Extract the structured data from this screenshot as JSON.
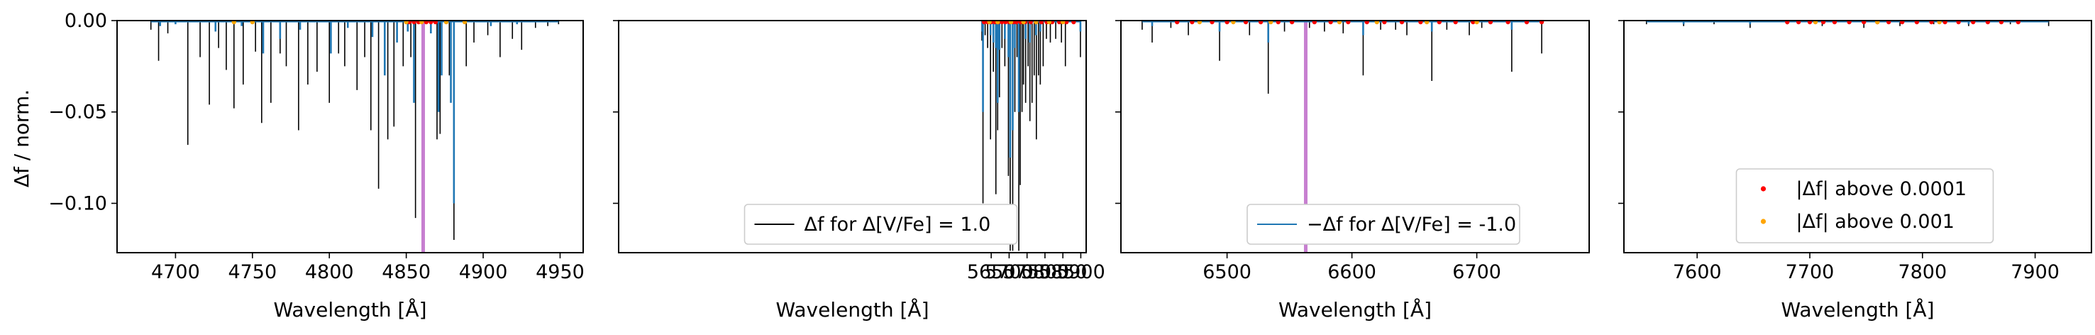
{
  "chart_data": [
    {
      "type": "line",
      "panel": 1,
      "xlim": [
        4662,
        4965
      ],
      "ylim": [
        -0.127,
        0.0
      ],
      "xticks": [
        4700,
        4750,
        4800,
        4850,
        4900,
        4950
      ],
      "yticks": [
        0.0,
        -0.05,
        -0.1
      ],
      "ytick_labels": [
        "0.00",
        "−0.05",
        "−0.10"
      ],
      "xlabel": "Wavelength [Å]",
      "ylabel": "Δf / norm.",
      "vline": 4861,
      "series": [
        {
          "color": "#000000",
          "lines": [
            [
              4684,
              -0.005
            ],
            [
              4689,
              -0.022
            ],
            [
              4695,
              -0.007
            ],
            [
              4708,
              -0.068
            ],
            [
              4716,
              -0.02
            ],
            [
              4722,
              -0.046
            ],
            [
              4728,
              -0.015
            ],
            [
              4733,
              -0.027
            ],
            [
              4738,
              -0.048
            ],
            [
              4744,
              -0.035
            ],
            [
              4752,
              -0.017
            ],
            [
              4756,
              -0.056
            ],
            [
              4762,
              -0.045
            ],
            [
              4768,
              -0.018
            ],
            [
              4772,
              -0.025
            ],
            [
              4780,
              -0.06
            ],
            [
              4786,
              -0.035
            ],
            [
              4792,
              -0.028
            ],
            [
              4800,
              -0.045
            ],
            [
              4806,
              -0.018
            ],
            [
              4810,
              -0.025
            ],
            [
              4818,
              -0.038
            ],
            [
              4823,
              -0.02
            ],
            [
              4827,
              -0.06
            ],
            [
              4832,
              -0.092
            ],
            [
              4838,
              -0.065
            ],
            [
              4842,
              -0.058
            ],
            [
              4848,
              -0.025
            ],
            [
              4853,
              -0.02
            ],
            [
              4856,
              -0.108
            ],
            [
              4870,
              -0.065
            ],
            [
              4872,
              -0.062
            ],
            [
              4878,
              -0.03
            ],
            [
              4881,
              -0.12
            ],
            [
              4889,
              -0.025
            ],
            [
              4894,
              -0.012
            ],
            [
              4903,
              -0.008
            ],
            [
              4911,
              -0.02
            ],
            [
              4919,
              -0.01
            ],
            [
              4925,
              -0.016
            ],
            [
              4934,
              -0.004
            ],
            [
              4942,
              -0.003
            ],
            [
              4949,
              -0.002
            ]
          ]
        },
        {
          "color": "#1f77b4",
          "lines": [
            [
              4690,
              -0.003
            ],
            [
              4700,
              -0.002
            ],
            [
              4726,
              -0.006
            ],
            [
              4743,
              -0.003
            ],
            [
              4757,
              -0.018
            ],
            [
              4768,
              -0.01
            ],
            [
              4781,
              -0.005
            ],
            [
              4801,
              -0.018
            ],
            [
              4812,
              -0.004
            ],
            [
              4828,
              -0.009
            ],
            [
              4836,
              -0.03
            ],
            [
              4844,
              -0.012
            ],
            [
              4851,
              -0.006
            ],
            [
              4855,
              -0.045
            ],
            [
              4866,
              -0.007
            ],
            [
              4871,
              -0.05
            ],
            [
              4873,
              -0.03
            ],
            [
              4879,
              -0.045
            ],
            [
              4881,
              -0.1
            ],
            [
              4905,
              -0.003
            ],
            [
              4922,
              -0.002
            ]
          ]
        }
      ],
      "dots": [
        {
          "color": "#ff0000",
          "x": [
            4852,
            4855,
            4858,
            4863,
            4866,
            4869
          ]
        },
        {
          "color": "#ffa500",
          "x": [
            4738,
            4750,
            4850,
            4860,
            4876,
            4888
          ]
        }
      ]
    },
    {
      "type": "line",
      "panel": 2,
      "xlim": [
        4610,
        5915
      ],
      "ylim": [
        -0.127,
        0.0
      ],
      "xticks": [
        5650,
        5700,
        5750,
        5800,
        5850,
        5900
      ],
      "yticks": [
        0.0,
        -0.05,
        -0.1
      ],
      "xlabel": "Wavelength [Å]",
      "series": [
        {
          "color": "#000000",
          "lines": [
            [
              5624,
              -0.011
            ],
            [
              5627,
              -0.1
            ],
            [
              5633,
              -0.008
            ],
            [
              5640,
              -0.015
            ],
            [
              5648,
              -0.065
            ],
            [
              5656,
              -0.028
            ],
            [
              5663,
              -0.095
            ],
            [
              5668,
              -0.06
            ],
            [
              5673,
              -0.042
            ],
            [
              5680,
              -0.015
            ],
            [
              5688,
              -0.025
            ],
            [
              5698,
              -0.085
            ],
            [
              5703,
              -0.126
            ],
            [
              5710,
              -0.126
            ],
            [
              5716,
              -0.05
            ],
            [
              5722,
              -0.02
            ],
            [
              5727,
              -0.126
            ],
            [
              5731,
              -0.09
            ],
            [
              5736,
              -0.05
            ],
            [
              5740,
              -0.035
            ],
            [
              5746,
              -0.045
            ],
            [
              5753,
              -0.025
            ],
            [
              5758,
              -0.055
            ],
            [
              5764,
              -0.045
            ],
            [
              5770,
              -0.03
            ],
            [
              5776,
              -0.065
            ],
            [
              5782,
              -0.03
            ],
            [
              5787,
              -0.035
            ],
            [
              5795,
              -0.025
            ],
            [
              5804,
              -0.01
            ],
            [
              5815,
              -0.012
            ],
            [
              5830,
              -0.01
            ],
            [
              5846,
              -0.012
            ],
            [
              5857,
              -0.025
            ],
            [
              5899,
              -0.02
            ]
          ]
        },
        {
          "color": "#1f77b4",
          "lines": [
            [
              5625,
              -0.006
            ],
            [
              5627,
              -0.05
            ],
            [
              5648,
              -0.008
            ],
            [
              5656,
              -0.012
            ],
            [
              5663,
              -0.015
            ],
            [
              5668,
              -0.045
            ],
            [
              5673,
              -0.016
            ],
            [
              5688,
              -0.01
            ],
            [
              5698,
              -0.02
            ],
            [
              5703,
              -0.075
            ],
            [
              5710,
              -0.06
            ],
            [
              5716,
              -0.015
            ],
            [
              5727,
              -0.05
            ],
            [
              5746,
              -0.01
            ],
            [
              5758,
              -0.012
            ],
            [
              5775,
              -0.008
            ],
            [
              5787,
              -0.006
            ],
            [
              5899,
              -0.006
            ]
          ]
        }
      ],
      "dots": [
        {
          "color": "#ff0000",
          "x": [
            5630,
            5640,
            5650,
            5660,
            5670,
            5680,
            5690,
            5700,
            5712,
            5720,
            5732,
            5745,
            5760,
            5775,
            5790,
            5805,
            5820,
            5840,
            5860,
            5880
          ]
        },
        {
          "color": "#ffa500",
          "x": [
            5645,
            5668,
            5705,
            5740,
            5775,
            5812,
            5850
          ]
        }
      ],
      "legend": {
        "label": "Δf for Δ[V/Fe] = 1.0",
        "color": "#000000"
      }
    },
    {
      "type": "line",
      "panel": 3,
      "xlim": [
        6415,
        6790
      ],
      "ylim": [
        -0.127,
        0.0
      ],
      "xticks": [
        6500,
        6600,
        6700
      ],
      "yticks": [
        0.0,
        -0.05,
        -0.1
      ],
      "xlabel": "Wavelength [Å]",
      "vline": 6563,
      "series": [
        {
          "color": "#000000",
          "lines": [
            [
              6432,
              -0.005
            ],
            [
              6440,
              -0.012
            ],
            [
              6455,
              -0.004
            ],
            [
              6469,
              -0.008
            ],
            [
              6494,
              -0.022
            ],
            [
              6518,
              -0.008
            ],
            [
              6533,
              -0.04
            ],
            [
              6546,
              -0.006
            ],
            [
              6566,
              -0.004
            ],
            [
              6578,
              -0.006
            ],
            [
              6593,
              -0.007
            ],
            [
              6609,
              -0.03
            ],
            [
              6623,
              -0.005
            ],
            [
              6635,
              -0.005
            ],
            [
              6644,
              -0.008
            ],
            [
              6664,
              -0.033
            ],
            [
              6676,
              -0.005
            ],
            [
              6694,
              -0.008
            ],
            [
              6704,
              -0.004
            ],
            [
              6728,
              -0.028
            ],
            [
              6752,
              -0.018
            ]
          ]
        },
        {
          "color": "#1f77b4",
          "lines": [
            [
              6440,
              -0.003
            ],
            [
              6494,
              -0.006
            ],
            [
              6533,
              -0.012
            ],
            [
              6609,
              -0.008
            ],
            [
              6664,
              -0.006
            ],
            [
              6728,
              -0.005
            ]
          ]
        }
      ],
      "dots": [
        {
          "color": "#ff0000",
          "x": [
            6460,
            6472,
            6488,
            6500,
            6515,
            6527,
            6541,
            6552,
            6570,
            6583,
            6597,
            6612,
            6626,
            6640,
            6655,
            6670,
            6683,
            6697,
            6711,
            6725,
            6740,
            6752
          ]
        },
        {
          "color": "#ffa500",
          "x": [
            6478,
            6505,
            6535,
            6590,
            6620,
            6660,
            6700
          ]
        }
      ],
      "legend": {
        "label": "−Δf for Δ[V/Fe] = -1.0",
        "color": "#1f77b4"
      }
    },
    {
      "type": "line",
      "panel": 4,
      "xlim": [
        7535,
        7950
      ],
      "ylim": [
        -0.127,
        0.0
      ],
      "xticks": [
        7600,
        7700,
        7800,
        7900
      ],
      "yticks": [
        0.0,
        -0.05,
        -0.1
      ],
      "xlabel": "Wavelength [Å]",
      "series": [
        {
          "color": "#000000",
          "lines": [
            [
              7555,
              -0.002
            ],
            [
              7588,
              -0.003
            ],
            [
              7615,
              -0.002
            ],
            [
              7647,
              -0.004
            ],
            [
              7680,
              -0.002
            ],
            [
              7711,
              -0.003
            ],
            [
              7748,
              -0.004
            ],
            [
              7780,
              -0.003
            ],
            [
              7810,
              -0.002
            ],
            [
              7841,
              -0.003
            ],
            [
              7878,
              -0.002
            ],
            [
              7912,
              -0.003
            ]
          ]
        },
        {
          "color": "#1f77b4",
          "lines": [
            [
              7588,
              -0.002
            ],
            [
              7647,
              -0.002
            ],
            [
              7748,
              -0.002
            ],
            [
              7841,
              -0.002
            ]
          ]
        }
      ],
      "dots": [
        {
          "color": "#ff0000",
          "x": [
            7680,
            7690,
            7700,
            7712,
            7722,
            7735,
            7748,
            7760,
            7770,
            7782,
            7795,
            7808,
            7820,
            7832,
            7845,
            7858,
            7870,
            7885
          ]
        },
        {
          "color": "#ffa500",
          "x": [
            7705,
            7760,
            7815
          ]
        }
      ],
      "legend_entries": [
        {
          "label": "|Δf| above 0.0001",
          "color": "#ff0000"
        },
        {
          "label": "|Δf| above 0.001",
          "color": "#ffa500"
        }
      ]
    }
  ]
}
